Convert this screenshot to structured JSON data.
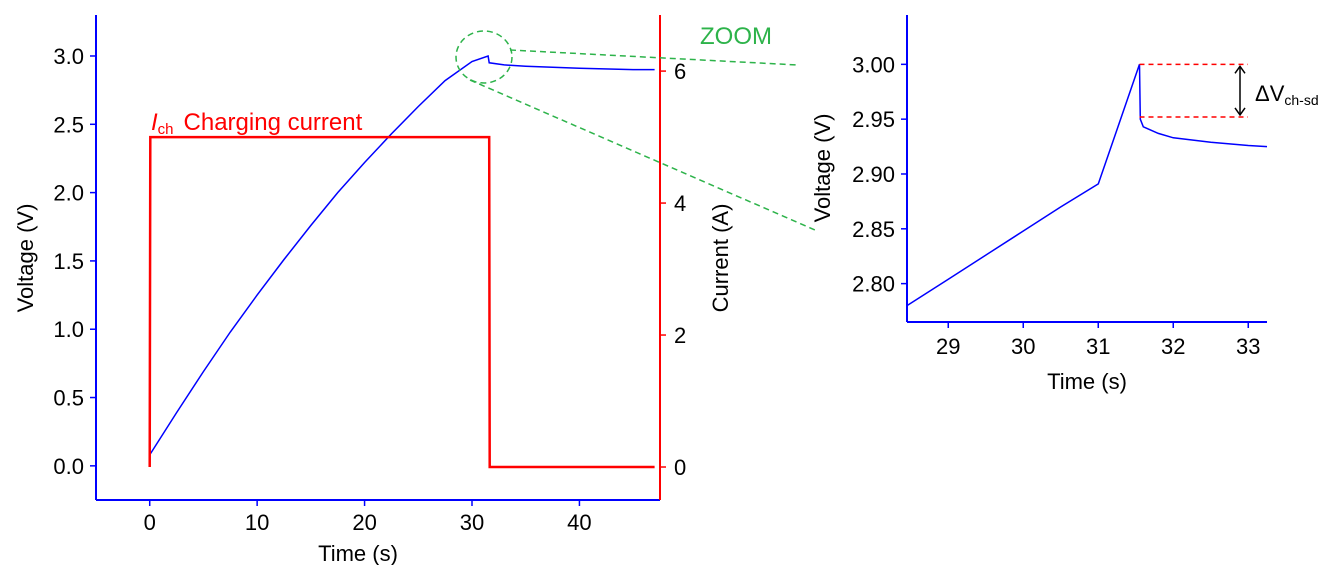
{
  "colors": {
    "voltage": "#0000ff",
    "current": "#ff0000",
    "zoom": "#2db34a",
    "axis_left": "#0000ff",
    "axis_right": "#ff0000",
    "text": "#000000"
  },
  "chart_data": [
    {
      "type": "line",
      "xlabel": "Time (s)",
      "ylabel": "Voltage (V)",
      "y2label": "Current (A)",
      "xlim": [
        -5,
        47.5
      ],
      "ylim": [
        -0.25,
        3.3
      ],
      "y2lim": [
        -0.5,
        6.85
      ],
      "xticks": [
        0,
        10,
        20,
        30,
        40
      ],
      "yticks": [
        0.0,
        0.5,
        1.0,
        1.5,
        2.0,
        2.5,
        3.0
      ],
      "y2ticks": [
        0,
        2,
        4,
        6
      ],
      "grid": false,
      "series": [
        {
          "axis": "left",
          "x": [
            0,
            2.5,
            5,
            7.5,
            10,
            12.5,
            15,
            17.5,
            20,
            22.5,
            25,
            27.5,
            30,
            31.5,
            31.6,
            33,
            35,
            40,
            45,
            47
          ],
          "y": [
            0.08,
            0.39,
            0.69,
            0.98,
            1.25,
            1.51,
            1.76,
            2.0,
            2.22,
            2.43,
            2.63,
            2.82,
            2.96,
            3.0,
            2.95,
            2.935,
            2.925,
            2.91,
            2.9,
            2.9
          ]
        },
        {
          "axis": "right",
          "x": [
            0,
            0.05,
            0.1,
            31.6,
            31.65,
            47
          ],
          "y": [
            0,
            5,
            5,
            5,
            0,
            0
          ]
        }
      ],
      "annotations": [
        {
          "text": "ZOOM"
        },
        {
          "symbol": "I",
          "subscript": "ch",
          "text": "Charging current"
        }
      ]
    },
    {
      "type": "line",
      "xlabel": "Time (s)",
      "ylabel": "Voltage (V)",
      "xlim": [
        28.45,
        33.25
      ],
      "ylim": [
        2.765,
        3.045
      ],
      "xticks": [
        29,
        30,
        31,
        32,
        33
      ],
      "xtick_labels": [
        "29",
        "30",
        "31",
        "32",
        "33"
      ],
      "yticks": [
        2.8,
        2.85,
        2.9,
        2.95,
        3.0
      ],
      "ytick_labels": [
        "2.80",
        "2.85",
        "2.90",
        "2.95",
        "3.00"
      ],
      "grid": false,
      "series": [
        {
          "x": [
            28.45,
            29,
            29.5,
            30,
            30.5,
            31,
            31.55,
            31.56,
            31.6,
            31.8,
            32,
            32.5,
            33,
            33.25
          ],
          "y": [
            2.78,
            2.804,
            2.826,
            2.848,
            2.87,
            2.891,
            3.0,
            2.95,
            2.943,
            2.937,
            2.933,
            2.929,
            2.926,
            2.925
          ]
        }
      ],
      "annotations": [
        {
          "text": "ΔV",
          "subscript": "ch-sd",
          "from": 3.0,
          "to": 2.952
        }
      ]
    }
  ]
}
